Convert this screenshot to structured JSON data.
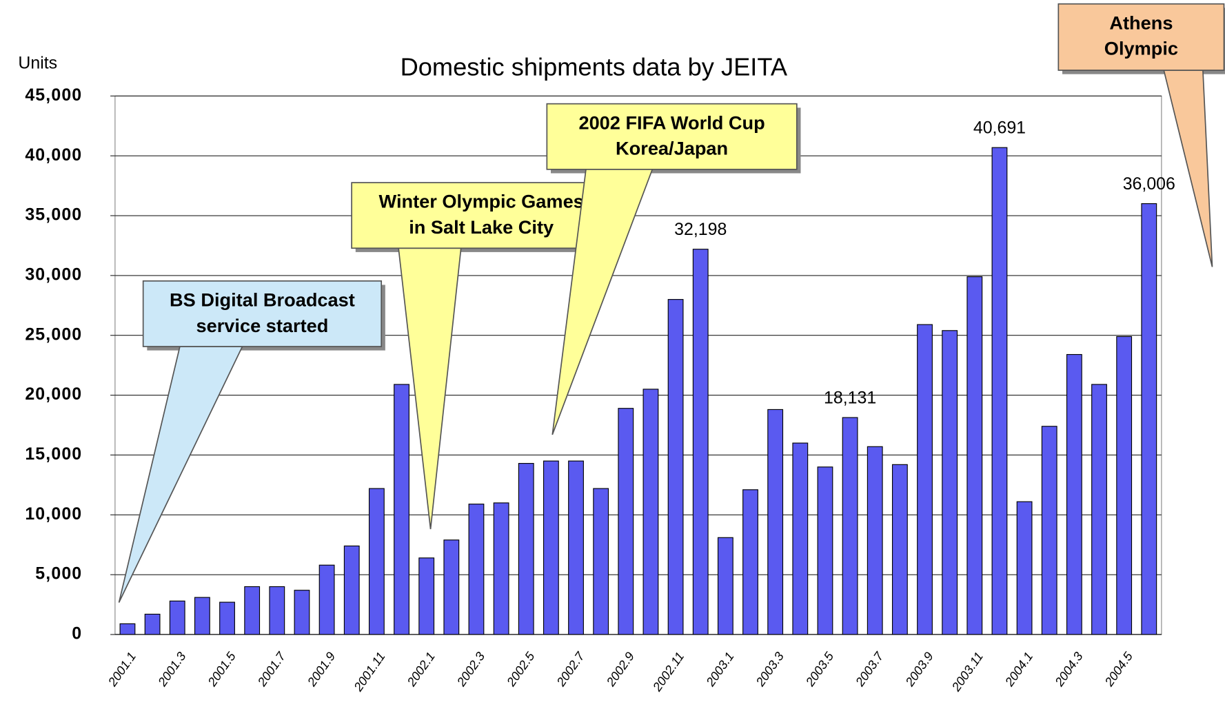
{
  "chart_data": {
    "type": "bar",
    "title": "Domestic shipments    data by JEITA",
    "y_label": "Units",
    "categories": [
      "2001.1",
      null,
      "2001.3",
      null,
      "2001.5",
      null,
      "2001.7",
      null,
      "2001.9",
      null,
      "2001.11",
      null,
      "2002.1",
      null,
      "2002.3",
      null,
      "2002.5",
      null,
      "2002.7",
      null,
      "2002.9",
      null,
      "2002.11",
      null,
      "2003.1",
      null,
      "2003.3",
      null,
      "2003.5",
      null,
      "2003.7",
      null,
      "2003.9",
      null,
      "2003.11",
      null,
      "2004.1",
      null,
      "2004.3",
      null,
      "2004.5",
      null
    ],
    "values": [
      900,
      1700,
      2800,
      3100,
      2700,
      4000,
      4000,
      3700,
      5800,
      7400,
      12200,
      20900,
      6400,
      7900,
      10900,
      11000,
      14300,
      14500,
      14500,
      12200,
      18900,
      20500,
      28000,
      32198,
      8100,
      12100,
      18800,
      16000,
      14000,
      18131,
      15700,
      14200,
      25900,
      25400,
      29900,
      40691,
      11100,
      17400,
      23400,
      20900,
      24900,
      36006
    ],
    "value_labels": [
      null,
      null,
      null,
      null,
      null,
      null,
      null,
      null,
      null,
      null,
      null,
      null,
      null,
      null,
      null,
      null,
      null,
      null,
      null,
      null,
      null,
      null,
      null,
      "32,198",
      null,
      null,
      null,
      null,
      null,
      "18,131",
      null,
      null,
      null,
      null,
      null,
      "40,691",
      null,
      null,
      null,
      null,
      null,
      "36,006"
    ],
    "color": "#5a5af0",
    "ylim": [
      0,
      45000
    ],
    "yticks": [
      0,
      {
        "value": 5000,
        "label": "5,000"
      },
      {
        "value": 10000,
        "label": "10,000"
      },
      {
        "value": 15000,
        "label": "15,000"
      },
      {
        "value": 20000,
        "label": "20,000"
      },
      {
        "value": 25000,
        "label": "25,000"
      },
      {
        "value": 30000,
        "label": "30,000"
      },
      {
        "value": 35000,
        "label": "35,000"
      },
      {
        "value": 40000,
        "label": "40,000"
      },
      {
        "value": 45000,
        "label": "45,000"
      }
    ],
    "grid": true,
    "annotations": [
      {
        "lines": [
          "BS Digital Broadcast",
          "service started"
        ],
        "color": "#cce8f8"
      },
      {
        "lines": [
          "Winter Olympic Games",
          "in Salt Lake City"
        ],
        "color": "#ffff99"
      },
      {
        "lines": [
          "2002 FIFA World Cup",
          "Korea/Japan"
        ],
        "color": "#ffff99"
      },
      {
        "lines": [
          "Athens",
          "Olympic"
        ],
        "color": "#f9c89b"
      }
    ]
  }
}
